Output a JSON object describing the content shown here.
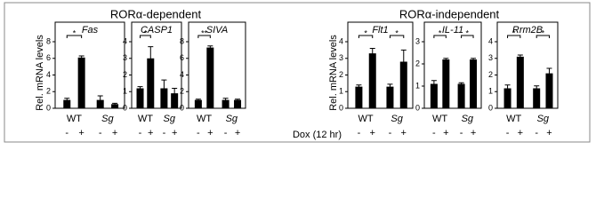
{
  "headings": [
    "RORα-dependent",
    "RORα-independent"
  ],
  "y_label": "Rel. mRNA levels",
  "dox_label": "Dox (12 hr)",
  "chart_data": [
    {
      "type": "bar",
      "title": "Fas",
      "categories": [
        "-",
        "+",
        "-",
        "+"
      ],
      "groups": [
        {
          "name": "WT",
          "significance": "*"
        },
        {
          "name": "Sg"
        }
      ],
      "values": [
        1.0,
        6.1,
        1.0,
        0.5
      ],
      "errors": [
        0.2,
        0.2,
        0.5,
        0.1
      ],
      "ylim": [
        0,
        8
      ],
      "yticks": [
        0,
        2,
        4,
        6,
        8
      ],
      "color": "#000000"
    },
    {
      "type": "bar",
      "title": "CASP1",
      "categories": [
        "-",
        "+",
        "-",
        "+"
      ],
      "groups": [
        {
          "name": "WT",
          "significance": "*"
        },
        {
          "name": "Sg"
        }
      ],
      "values": [
        1.2,
        3.0,
        1.2,
        0.9
      ],
      "errors": [
        0.1,
        0.7,
        0.5,
        0.3
      ],
      "ylim": [
        0,
        4
      ],
      "yticks": [
        0,
        1,
        2,
        3,
        4
      ],
      "color": "#000000"
    },
    {
      "type": "bar",
      "title": "SIVA",
      "categories": [
        "-",
        "+",
        "-",
        "+"
      ],
      "groups": [
        {
          "name": "WT",
          "significance": "**"
        },
        {
          "name": "Sg"
        }
      ],
      "values": [
        1.0,
        7.3,
        1.0,
        1.0
      ],
      "errors": [
        0.1,
        0.2,
        0.2,
        0.1
      ],
      "ylim": [
        0,
        8
      ],
      "yticks": [
        0,
        2,
        4,
        6,
        8
      ],
      "color": "#000000"
    },
    {
      "type": "bar",
      "title": "Flt1",
      "categories": [
        "-",
        "+",
        "-",
        "+"
      ],
      "groups": [
        {
          "name": "WT",
          "significance": "*"
        },
        {
          "name": "Sg",
          "significance": "*"
        }
      ],
      "values": [
        1.3,
        3.3,
        1.3,
        2.8
      ],
      "errors": [
        0.1,
        0.3,
        0.15,
        0.7
      ],
      "ylim": [
        0,
        4
      ],
      "yticks": [
        0,
        1,
        2,
        3,
        4
      ],
      "color": "#000000"
    },
    {
      "type": "bar",
      "title": "IL-11",
      "categories": [
        "-",
        "+",
        "-",
        "+"
      ],
      "groups": [
        {
          "name": "WT",
          "significance": "*"
        },
        {
          "name": "Sg",
          "significance": "*"
        }
      ],
      "values": [
        1.1,
        2.2,
        1.1,
        2.2
      ],
      "errors": [
        0.15,
        0.05,
        0.05,
        0.05
      ],
      "ylim": [
        0,
        3
      ],
      "yticks": [
        0,
        1,
        2,
        3
      ],
      "color": "#000000"
    },
    {
      "type": "bar",
      "title": "Rrm2B",
      "categories": [
        "-",
        "+",
        "-",
        "+"
      ],
      "groups": [
        {
          "name": "WT",
          "significance": "*"
        },
        {
          "name": "Sg",
          "significance": "*"
        }
      ],
      "values": [
        1.2,
        3.1,
        1.2,
        2.1
      ],
      "errors": [
        0.2,
        0.1,
        0.15,
        0.3
      ],
      "ylim": [
        0,
        4
      ],
      "yticks": [
        0,
        1,
        2,
        3,
        4
      ],
      "color": "#000000"
    }
  ]
}
